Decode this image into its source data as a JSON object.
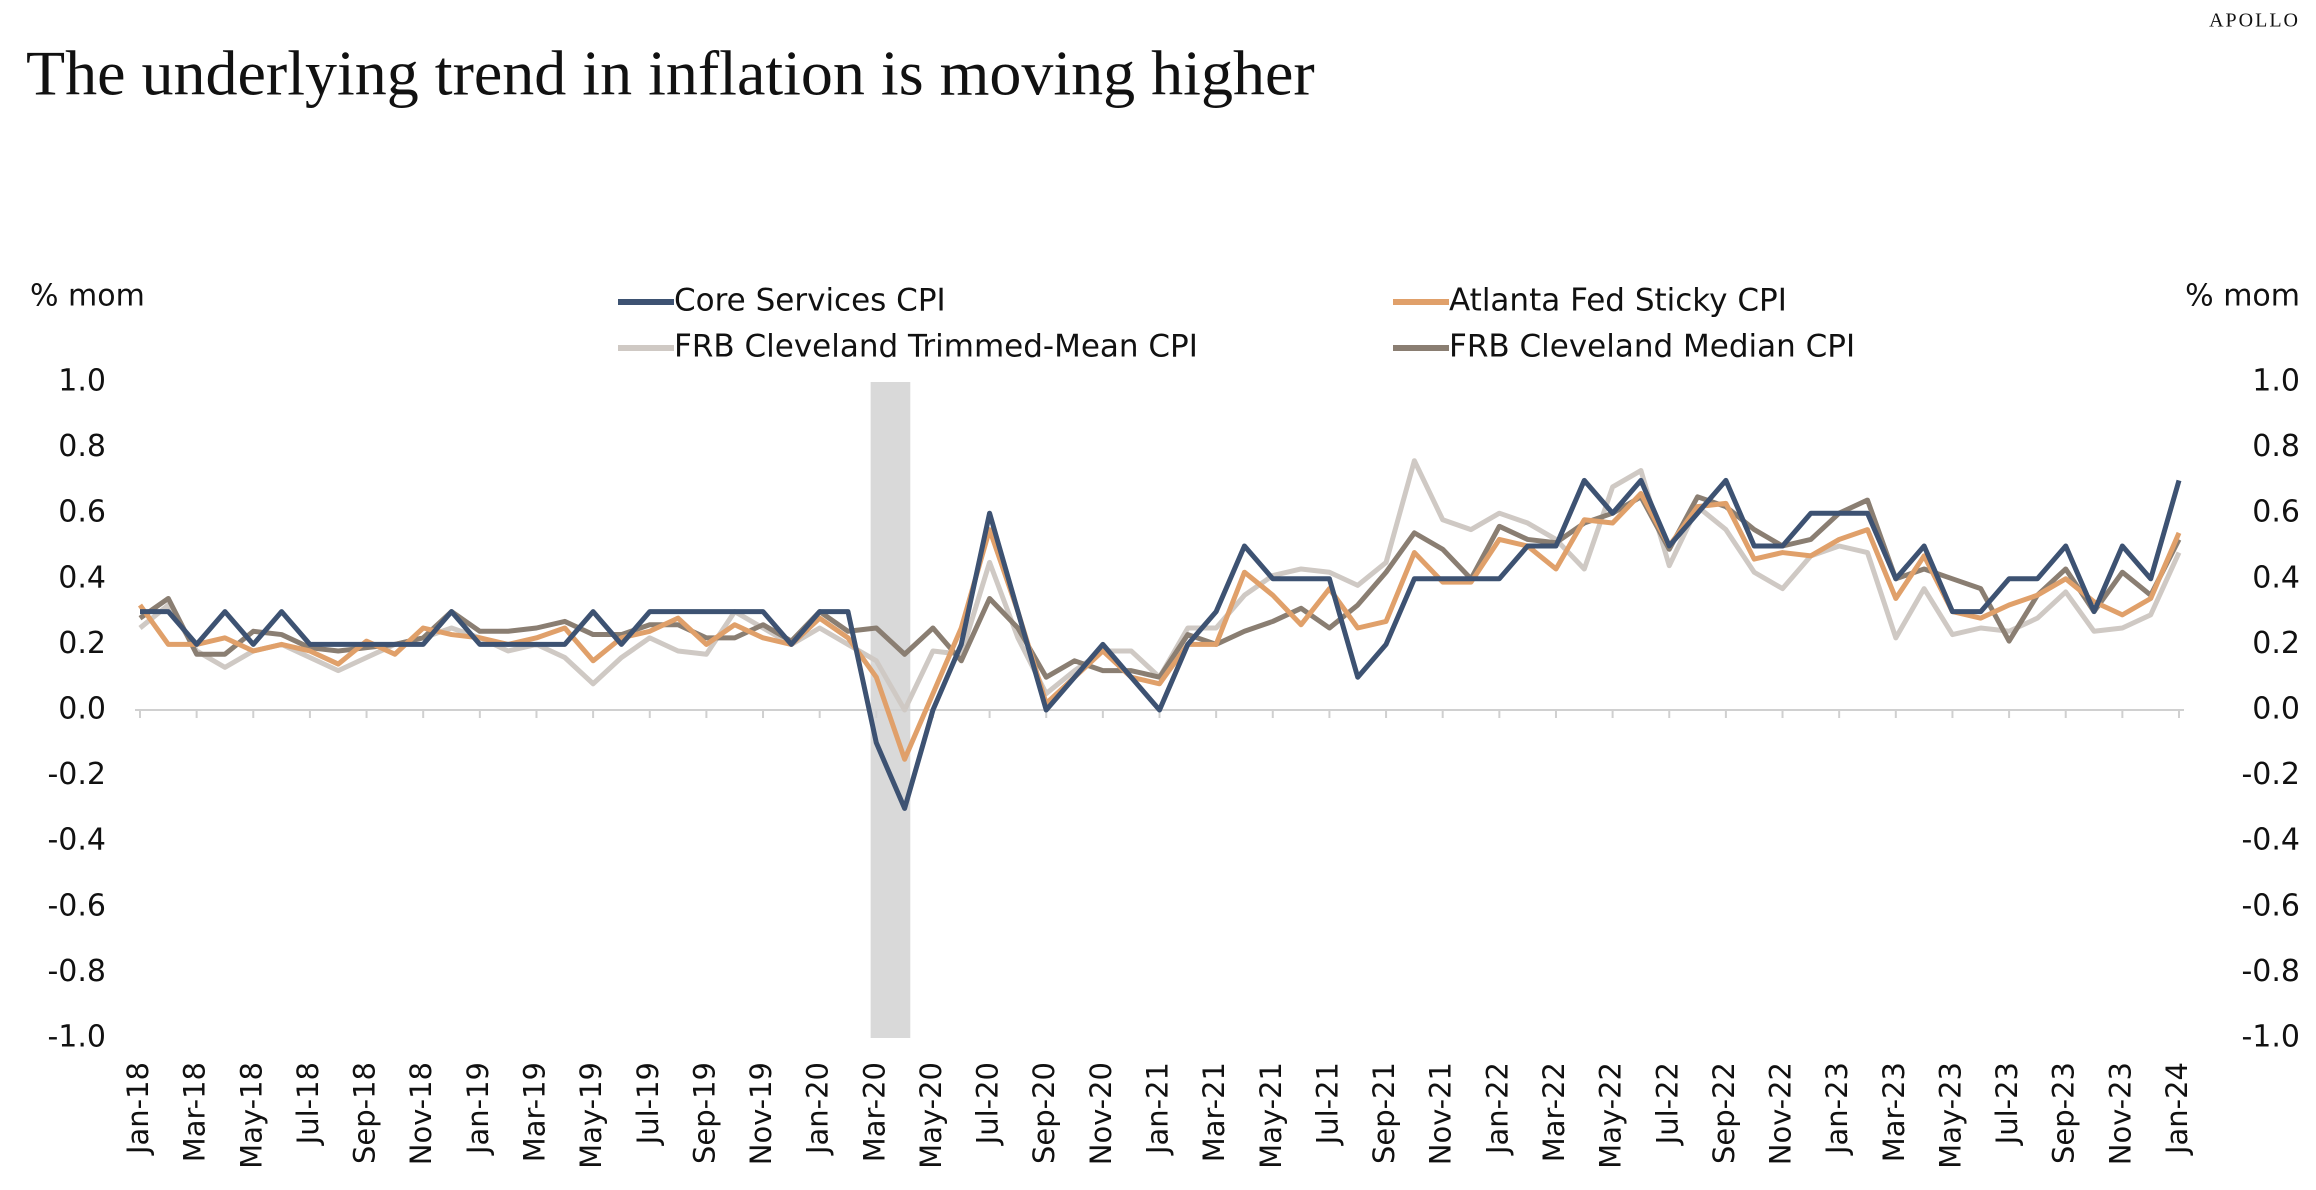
{
  "brand": "APOLLO",
  "chart_data": {
    "type": "line",
    "title": "The underlying trend in inflation is moving higher",
    "y_label": "% mom",
    "y2_label": "% mom",
    "categories": [
      "Jan-18",
      null,
      "Mar-18",
      null,
      "May-18",
      null,
      "Jul-18",
      null,
      "Sep-18",
      null,
      "Nov-18",
      null,
      "Jan-19",
      null,
      "Mar-19",
      null,
      "May-19",
      null,
      "Jul-19",
      null,
      "Sep-19",
      null,
      "Nov-19",
      null,
      "Jan-20",
      null,
      "Mar-20",
      null,
      "May-20",
      null,
      "Jul-20",
      null,
      "Sep-20",
      null,
      "Nov-20",
      null,
      "Jan-21",
      null,
      "Mar-21",
      null,
      "May-21",
      null,
      "Jul-21",
      null,
      "Sep-21",
      null,
      "Nov-21",
      null,
      "Jan-22",
      null,
      "Mar-22",
      null,
      "May-22",
      null,
      "Jul-22",
      null,
      "Sep-22",
      null,
      "Nov-22",
      null,
      "Jan-23",
      null,
      "Mar-23",
      null,
      "May-23",
      null,
      "Jul-23",
      null,
      "Sep-23",
      null,
      "Nov-23",
      null,
      "Jan-24"
    ],
    "shaded_span": [
      26,
      27
    ],
    "shade_color": "#d9d9d9",
    "series": [
      {
        "name": "Core Services CPI",
        "color": "#3d5272",
        "values": [
          0.3,
          0.3,
          0.2,
          0.3,
          0.2,
          0.3,
          0.2,
          0.2,
          0.2,
          0.2,
          0.2,
          0.3,
          0.2,
          0.2,
          0.2,
          0.2,
          0.3,
          0.2,
          0.3,
          0.3,
          0.3,
          0.3,
          0.3,
          0.2,
          0.3,
          0.3,
          -0.1,
          -0.3,
          0.0,
          0.2,
          0.6,
          0.3,
          0.0,
          0.1,
          0.2,
          0.1,
          0.0,
          0.2,
          0.3,
          0.5,
          0.4,
          0.4,
          0.4,
          0.1,
          0.2,
          0.4,
          0.4,
          0.4,
          0.4,
          0.5,
          0.5,
          0.7,
          0.6,
          0.7,
          0.5,
          0.6,
          0.7,
          0.5,
          0.5,
          0.6,
          0.6,
          0.6,
          0.4,
          0.5,
          0.3,
          0.3,
          0.4,
          0.4,
          0.5,
          0.3,
          0.5,
          0.4,
          0.7
        ]
      },
      {
        "name": "Atlanta Fed Sticky CPI",
        "color": "#e0a06a",
        "values": [
          0.32,
          0.2,
          0.2,
          0.22,
          0.18,
          0.2,
          0.18,
          0.14,
          0.21,
          0.17,
          0.25,
          0.23,
          0.22,
          0.2,
          0.22,
          0.25,
          0.15,
          0.22,
          0.24,
          0.28,
          0.2,
          0.26,
          0.22,
          0.2,
          0.28,
          0.22,
          0.1,
          -0.15,
          0.05,
          0.25,
          0.55,
          0.3,
          0.02,
          0.1,
          0.18,
          0.1,
          0.08,
          0.2,
          0.2,
          0.42,
          0.35,
          0.26,
          0.37,
          0.25,
          0.27,
          0.48,
          0.39,
          0.39,
          0.52,
          0.5,
          0.43,
          0.58,
          0.57,
          0.66,
          0.5,
          0.62,
          0.63,
          0.46,
          0.48,
          0.47,
          0.52,
          0.55,
          0.34,
          0.47,
          0.3,
          0.28,
          0.32,
          0.35,
          0.4,
          0.33,
          0.29,
          0.34,
          0.54
        ]
      },
      {
        "name": "FRB Cleveland Trimmed-Mean CPI",
        "color": "#cfc9c4",
        "values": [
          0.25,
          0.32,
          0.18,
          0.13,
          0.18,
          0.2,
          0.16,
          0.12,
          0.16,
          0.2,
          0.22,
          0.25,
          0.22,
          0.18,
          0.2,
          0.16,
          0.08,
          0.16,
          0.22,
          0.18,
          0.17,
          0.3,
          0.25,
          0.2,
          0.25,
          0.2,
          0.15,
          0.0,
          0.18,
          0.17,
          0.45,
          0.22,
          0.05,
          0.12,
          0.18,
          0.18,
          0.1,
          0.25,
          0.25,
          0.35,
          0.41,
          0.43,
          0.42,
          0.38,
          0.45,
          0.76,
          0.58,
          0.55,
          0.6,
          0.57,
          0.52,
          0.43,
          0.68,
          0.73,
          0.44,
          0.62,
          0.55,
          0.42,
          0.37,
          0.47,
          0.5,
          0.48,
          0.22,
          0.37,
          0.23,
          0.25,
          0.24,
          0.28,
          0.36,
          0.24,
          0.25,
          0.29,
          0.48
        ]
      },
      {
        "name": "FRB Cleveland Median CPI",
        "color": "#8a7e72",
        "values": [
          0.28,
          0.34,
          0.17,
          0.17,
          0.24,
          0.23,
          0.19,
          0.18,
          0.19,
          0.2,
          0.22,
          0.3,
          0.24,
          0.24,
          0.25,
          0.27,
          0.23,
          0.23,
          0.26,
          0.26,
          0.22,
          0.22,
          0.26,
          0.21,
          0.3,
          0.24,
          0.25,
          0.17,
          0.25,
          0.15,
          0.34,
          0.25,
          0.1,
          0.15,
          0.12,
          0.12,
          0.1,
          0.23,
          0.2,
          0.24,
          0.27,
          0.31,
          0.25,
          0.32,
          0.42,
          0.54,
          0.49,
          0.4,
          0.56,
          0.52,
          0.51,
          0.57,
          0.6,
          0.65,
          0.49,
          0.65,
          0.62,
          0.55,
          0.5,
          0.52,
          0.6,
          0.64,
          0.4,
          0.43,
          0.4,
          0.37,
          0.21,
          0.35,
          0.43,
          0.3,
          0.42,
          0.35,
          0.52
        ]
      }
    ],
    "ylim": [
      -1,
      1
    ],
    "yticks": [
      {
        "value": -1,
        "label": "-1.0"
      },
      {
        "value": -0.8,
        "label": "-0.8"
      },
      {
        "value": -0.6,
        "label": "-0.6"
      },
      {
        "value": -0.4,
        "label": "-0.4"
      },
      {
        "value": -0.2,
        "label": "-0.2"
      },
      {
        "value": 0,
        "label": "0.0"
      },
      {
        "value": 0.2,
        "label": "0.2"
      },
      {
        "value": 0.4,
        "label": "0.4"
      },
      {
        "value": 0.6,
        "label": "0.6"
      },
      {
        "value": 0.8,
        "label": "0.8"
      },
      {
        "value": 1,
        "label": "1.0"
      }
    ],
    "y2lim": [
      -1,
      1
    ],
    "y2ticks": [
      {
        "value": -1,
        "label": "-1.0"
      },
      {
        "value": -0.8,
        "label": "-0.8"
      },
      {
        "value": -0.6,
        "label": "-0.6"
      },
      {
        "value": -0.4,
        "label": "-0.4"
      },
      {
        "value": -0.2,
        "label": "-0.2"
      },
      {
        "value": 0,
        "label": "0.0"
      },
      {
        "value": 0.2,
        "label": "0.2"
      },
      {
        "value": 0.4,
        "label": "0.4"
      },
      {
        "value": 0.6,
        "label": "0.6"
      },
      {
        "value": 0.8,
        "label": "0.8"
      },
      {
        "value": 1,
        "label": "1.0"
      }
    ],
    "zero_line": true,
    "grid": false
  }
}
